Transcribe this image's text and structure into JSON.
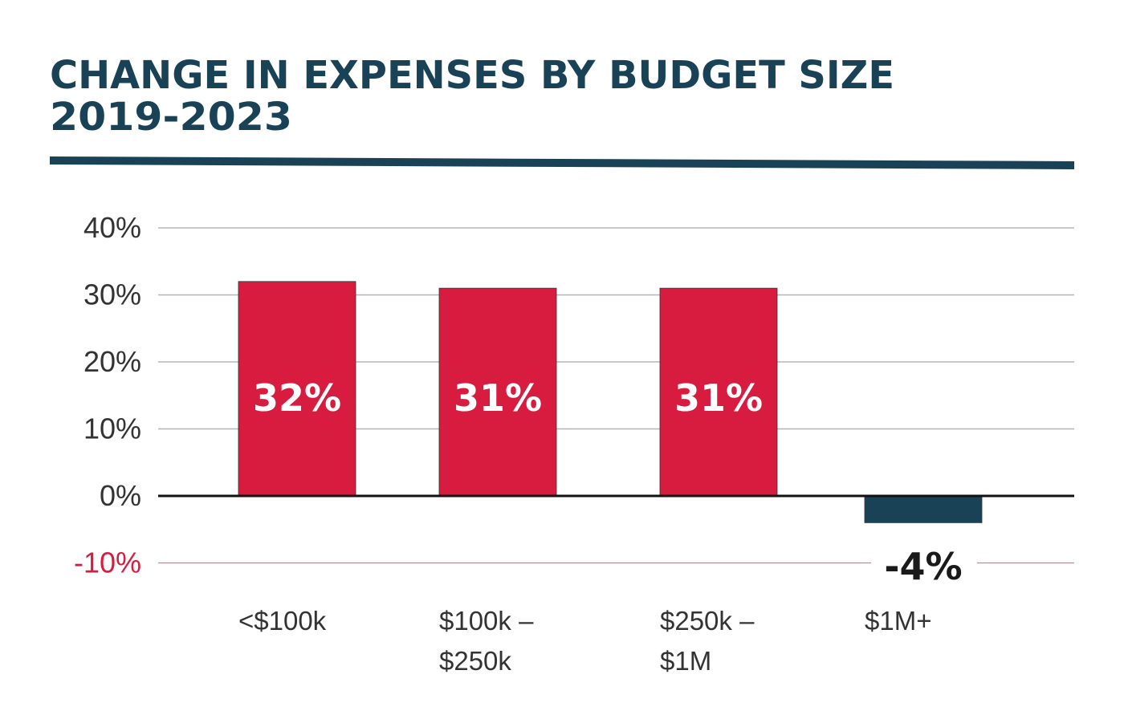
{
  "chart_data": {
    "type": "bar",
    "title": [
      "CHANGE IN EXPENSES BY BUDGET SIZE",
      "2019-2023"
    ],
    "xlabel": "",
    "ylabel": "",
    "categories": [
      [
        "<$100k"
      ],
      [
        "$100k –",
        "$250k"
      ],
      [
        "$250k –",
        "$1M"
      ],
      [
        "$1M+"
      ]
    ],
    "values": [
      32,
      31,
      31,
      -4
    ],
    "data_labels": [
      "32%",
      "31%",
      "31%",
      "-4%"
    ],
    "ylim": [
      -10,
      40
    ],
    "yticks": [
      40,
      30,
      20,
      10,
      0,
      -10
    ],
    "ytick_labels": [
      "40%",
      "30%",
      "20%",
      "10%",
      "0%",
      "-10%"
    ],
    "grid": true,
    "colors": {
      "positive": "#d71c3f",
      "negative": "#1a4256",
      "title": "#1a4256",
      "negative_gridline": "#d71c3f",
      "gridline": "#b5b5b5"
    }
  }
}
